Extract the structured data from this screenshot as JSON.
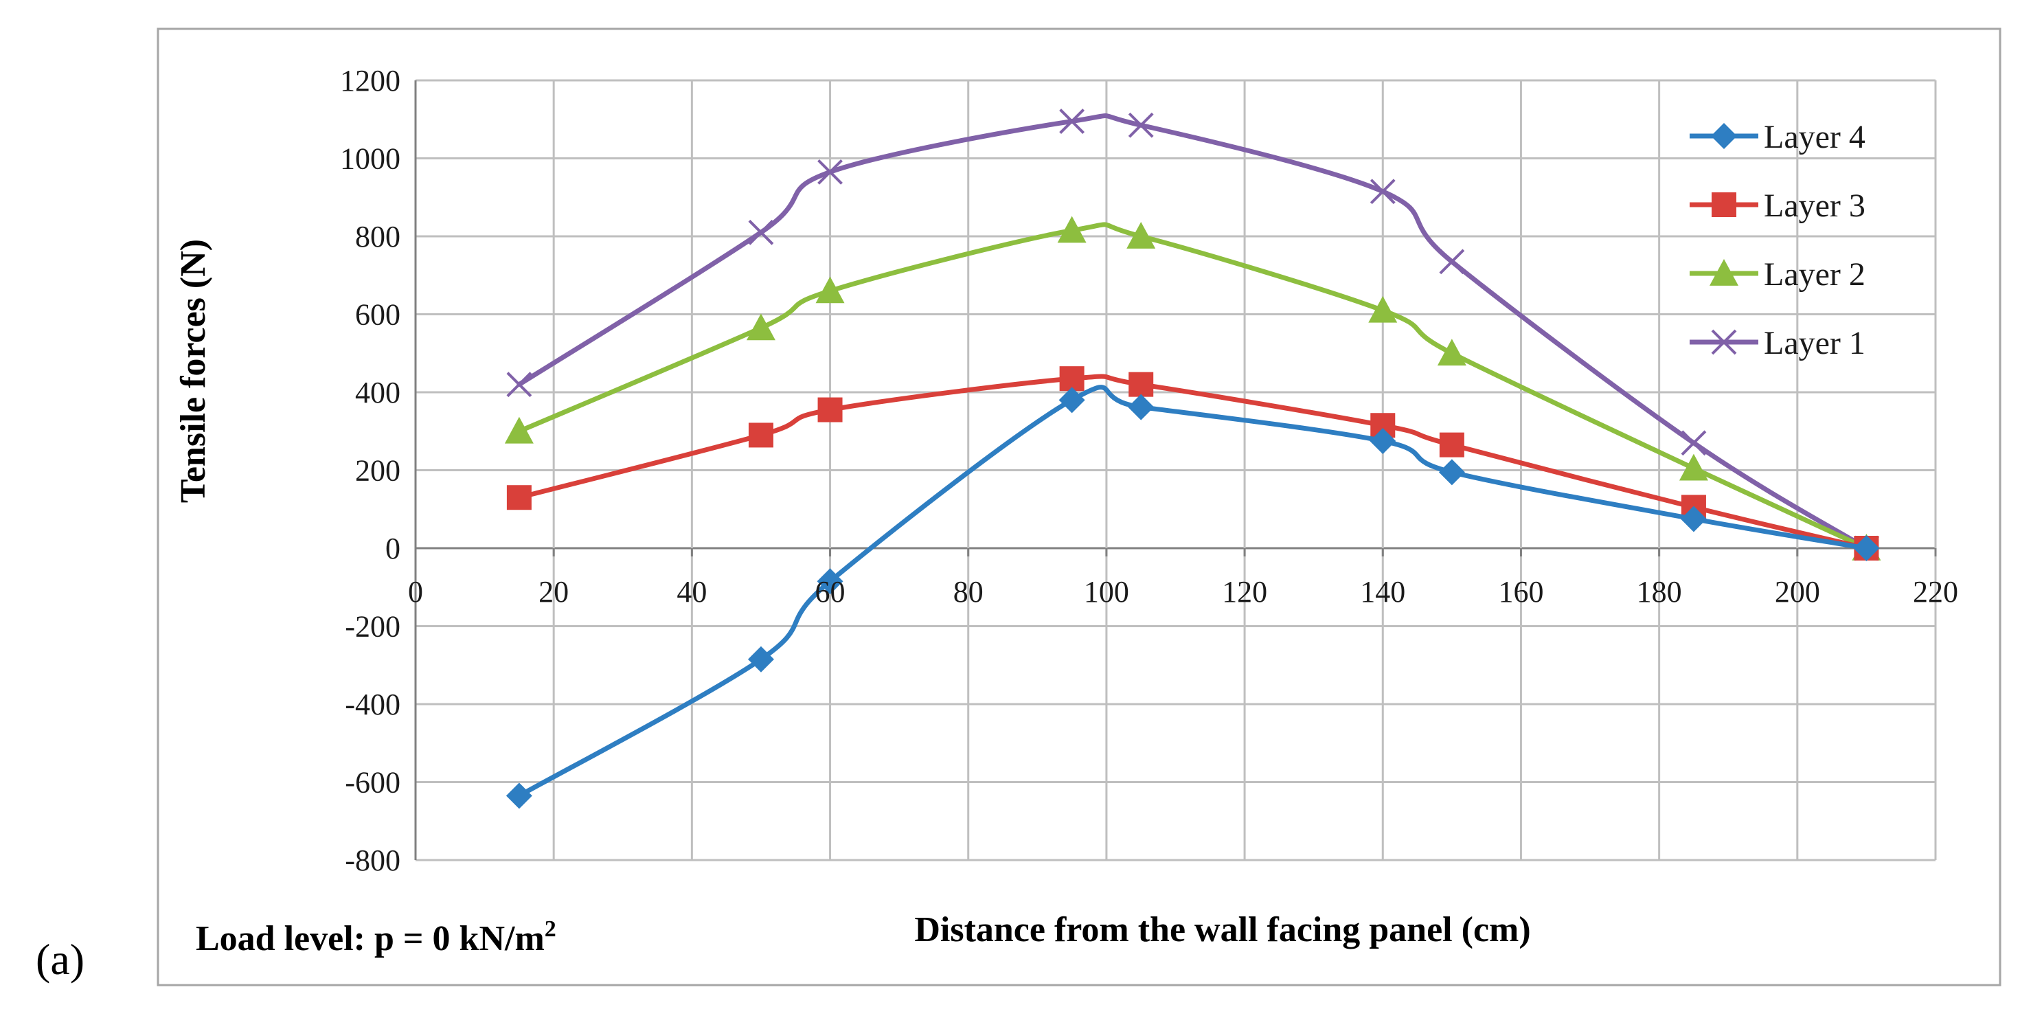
{
  "panel_label": "(a)",
  "chart_data": {
    "type": "line",
    "title": "",
    "xlabel": "Distance from the wall facing panel (cm)",
    "ylabel": "Tensile forces (N)",
    "annotation_prefix": "Load level: p = 0 kN/m",
    "annotation_superscript": "2",
    "xlim": [
      0,
      220
    ],
    "ylim": [
      -800,
      1200
    ],
    "xticks": [
      0,
      20,
      40,
      60,
      80,
      100,
      120,
      140,
      160,
      180,
      200,
      220
    ],
    "yticks": [
      -800,
      -600,
      -400,
      -200,
      0,
      200,
      400,
      600,
      800,
      1000,
      1200
    ],
    "x": [
      15,
      50,
      60,
      95,
      105,
      140,
      150,
      185,
      210
    ],
    "grid": true,
    "legend_position": "top-right",
    "series": [
      {
        "name": "Layer 4",
        "color": "#2E7EC2",
        "marker": "diamond",
        "values": [
          -635,
          -285,
          -85,
          380,
          362,
          275,
          195,
          75,
          0
        ]
      },
      {
        "name": "Layer 3",
        "color": "#D9403A",
        "marker": "square",
        "values": [
          130,
          290,
          355,
          435,
          420,
          315,
          265,
          105,
          0
        ]
      },
      {
        "name": "Layer 2",
        "color": "#8DBE3F",
        "marker": "triangle",
        "values": [
          300,
          565,
          660,
          815,
          800,
          610,
          500,
          205,
          0
        ]
      },
      {
        "name": "Layer 1",
        "color": "#8061A8",
        "marker": "x",
        "values": [
          420,
          810,
          965,
          1095,
          1085,
          915,
          735,
          270,
          0
        ]
      }
    ]
  }
}
